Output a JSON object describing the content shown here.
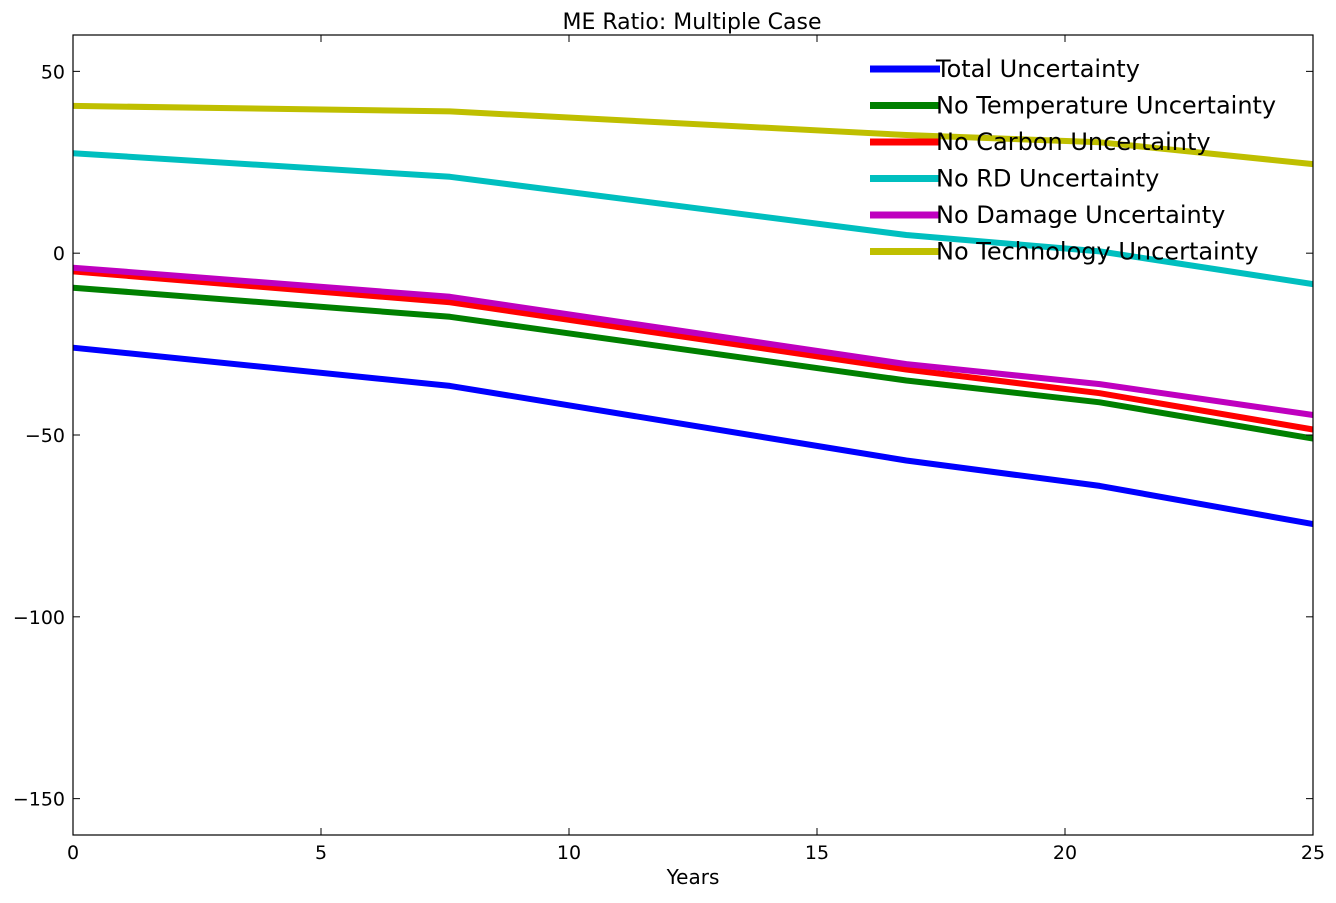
{
  "chart_data": {
    "type": "line",
    "title": "ME Ratio: Multiple Case",
    "xlabel": "Years",
    "ylabel": "",
    "xlim": [
      0,
      25
    ],
    "ylim": [
      -160,
      60
    ],
    "xticks": [
      0,
      5,
      10,
      15,
      20,
      25
    ],
    "yticks": [
      50,
      0,
      -50,
      -100,
      -150
    ],
    "xtick_labels": [
      "0",
      "5",
      "10",
      "15",
      "20",
      "25"
    ],
    "ytick_labels": [
      "50",
      "0",
      "−50",
      "−100",
      "−150"
    ],
    "grid": false,
    "legend_position": "top-right",
    "x": [
      0,
      7.6,
      16.8,
      20.7,
      25
    ],
    "series": [
      {
        "name": "Total Uncertainty",
        "color": "#0000ff",
        "values": [
          -26,
          -36.5,
          -57,
          -64,
          -74.5
        ]
      },
      {
        "name": "No Temperature Uncertainty",
        "color": "#008000",
        "values": [
          -9.5,
          -17.5,
          -35,
          -41,
          -51
        ]
      },
      {
        "name": "No Carbon Uncertainty",
        "color": "#ff0000",
        "values": [
          -5,
          -13.5,
          -32,
          -38.5,
          -48.5
        ]
      },
      {
        "name": "No RD Uncertainty",
        "color": "#00bfbf",
        "values": [
          27.5,
          21,
          5,
          0.5,
          -8.5
        ]
      },
      {
        "name": "No Damage Uncertainty",
        "color": "#bf00bf",
        "values": [
          -4,
          -12,
          -30.5,
          -36,
          -44.5
        ]
      },
      {
        "name": "No Technology Uncertainty",
        "color": "#bfbf00",
        "values": [
          40.5,
          39,
          32.5,
          30.5,
          24.5
        ]
      }
    ]
  }
}
